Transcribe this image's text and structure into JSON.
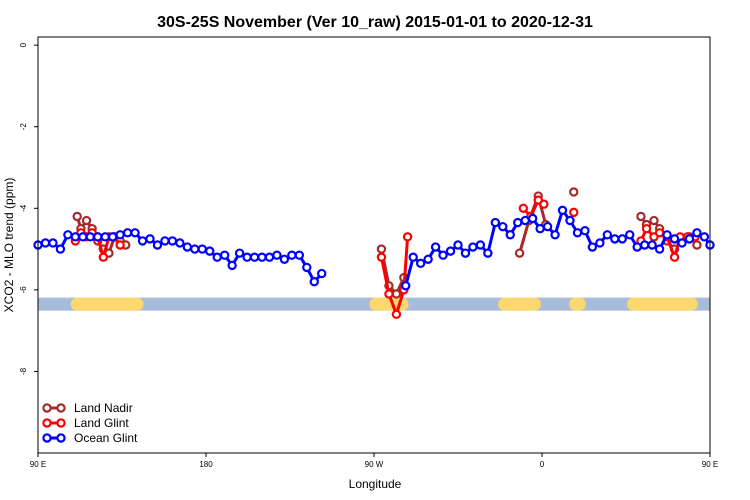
{
  "chart_data": {
    "type": "line",
    "title": "30S-25S November (Ver 10_raw)   2015-01-01 to 2020-12-31",
    "xlabel": "Longitude",
    "ylabel": "XCO2 - MLO trend (ppm)",
    "xlim": [
      -90,
      270
    ],
    "ylim": [
      -10,
      0.2
    ],
    "x_ticks": [
      {
        "value": -90,
        "label": "90 E"
      },
      {
        "value": 0,
        "label": "180"
      },
      {
        "value": 90,
        "label": "90 W"
      },
      {
        "value": 180,
        "label": "0"
      },
      {
        "value": 270,
        "label": "90 E"
      },
      {
        "value": 360,
        "label": "180"
      }
    ],
    "y_ticks": [
      {
        "value": 0,
        "label": "0"
      },
      {
        "value": -2,
        "label": "-2"
      },
      {
        "value": -4,
        "label": "-4"
      },
      {
        "value": -6,
        "label": "-6"
      },
      {
        "value": -8,
        "label": "-8"
      }
    ],
    "legend_position": "bottom-left",
    "surface_band": {
      "y": -6.35,
      "ocean_color": "#a7bcd9",
      "land_color": "#fcd86f",
      "land_ranges": [
        [
          -69,
          -37
        ],
        [
          91,
          105
        ],
        [
          160,
          176
        ],
        [
          198,
          200
        ],
        [
          229,
          260
        ]
      ]
    },
    "series": [
      {
        "name": "Land Nadir",
        "color": "#a52a2a",
        "points": [
          [
            -69,
            -4.2
          ],
          [
            -67,
            -4.5
          ],
          [
            -64,
            -4.3
          ],
          [
            -61,
            -4.5
          ],
          [
            -58,
            -4.8
          ],
          [
            -55,
            -5.0
          ],
          [
            -52,
            -5.1
          ],
          [
            -49,
            -4.7
          ],
          [
            -46,
            -4.8
          ],
          [
            -43,
            -4.9
          ],
          null,
          [
            94,
            -5.0
          ],
          [
            98,
            -5.9
          ],
          [
            102,
            -6.1
          ],
          [
            106,
            -5.7
          ],
          null,
          [
            168,
            -5.1
          ],
          [
            173,
            -4.3
          ],
          [
            178,
            -3.7
          ],
          [
            182,
            -4.4
          ],
          null,
          [
            197,
            -3.6
          ],
          null,
          [
            233,
            -4.2
          ],
          [
            236,
            -4.4
          ],
          [
            240,
            -4.3
          ],
          [
            243,
            -4.5
          ],
          [
            247,
            -4.8
          ],
          [
            251,
            -5.0
          ],
          [
            255,
            -4.8
          ],
          [
            259,
            -4.7
          ],
          [
            263,
            -4.9
          ]
        ]
      },
      {
        "name": "Land Glint",
        "color": "#ff0000",
        "points": [
          [
            -70,
            -4.8
          ],
          [
            -67,
            -4.6
          ],
          [
            -64,
            -4.7
          ],
          [
            -61,
            -4.6
          ],
          [
            -58,
            -4.7
          ],
          [
            -55,
            -5.2
          ],
          [
            -52,
            -4.7
          ],
          [
            -49,
            -4.7
          ],
          [
            -46,
            -4.9
          ],
          null,
          [
            94,
            -5.2
          ],
          [
            98,
            -6.1
          ],
          [
            102,
            -6.6
          ],
          [
            106,
            -6.0
          ],
          [
            108,
            -4.7
          ],
          null,
          [
            170,
            -4.0
          ],
          [
            174,
            -4.2
          ],
          [
            178,
            -3.8
          ],
          [
            181,
            -3.9
          ],
          null,
          [
            197,
            -4.1
          ],
          null,
          [
            233,
            -4.8
          ],
          [
            236,
            -4.5
          ],
          [
            240,
            -4.7
          ],
          [
            243,
            -4.6
          ],
          [
            247,
            -4.7
          ],
          [
            251,
            -5.2
          ],
          [
            254,
            -4.7
          ],
          [
            258,
            -4.7
          ],
          [
            262,
            -4.7
          ]
        ]
      },
      {
        "name": "Ocean Glint",
        "color": "#0000ff",
        "points": [
          [
            -90,
            -4.9
          ],
          [
            -86,
            -4.85
          ],
          [
            -82,
            -4.85
          ],
          [
            -78,
            -5.0
          ],
          [
            -74,
            -4.65
          ],
          [
            -70,
            -4.7
          ],
          [
            -66,
            -4.7
          ],
          [
            -62,
            -4.7
          ],
          [
            -58,
            -4.7
          ],
          [
            -54,
            -4.7
          ],
          [
            -50,
            -4.7
          ],
          [
            -46,
            -4.65
          ],
          [
            -42,
            -4.6
          ],
          [
            -38,
            -4.6
          ],
          [
            -34,
            -4.8
          ],
          [
            -30,
            -4.75
          ],
          [
            -26,
            -4.9
          ],
          [
            -22,
            -4.8
          ],
          [
            -18,
            -4.8
          ],
          [
            -14,
            -4.85
          ],
          [
            -10,
            -4.95
          ],
          [
            -6,
            -5.0
          ],
          [
            -2,
            -5.0
          ],
          [
            2,
            -5.05
          ],
          [
            6,
            -5.2
          ],
          [
            10,
            -5.15
          ],
          [
            14,
            -5.4
          ],
          [
            18,
            -5.1
          ],
          [
            22,
            -5.2
          ],
          [
            26,
            -5.2
          ],
          [
            30,
            -5.2
          ],
          [
            34,
            -5.2
          ],
          [
            38,
            -5.15
          ],
          [
            42,
            -5.25
          ],
          [
            46,
            -5.15
          ],
          [
            50,
            -5.15
          ],
          [
            54,
            -5.45
          ],
          [
            58,
            -5.8
          ],
          [
            62,
            -5.6
          ],
          null,
          [
            107,
            -5.9
          ],
          [
            111,
            -5.2
          ],
          [
            115,
            -5.35
          ],
          [
            119,
            -5.25
          ],
          [
            123,
            -4.95
          ],
          [
            127,
            -5.15
          ],
          [
            131,
            -5.05
          ],
          [
            135,
            -4.9
          ],
          [
            139,
            -5.1
          ],
          [
            143,
            -4.95
          ],
          [
            147,
            -4.9
          ],
          [
            151,
            -5.1
          ],
          [
            155,
            -4.35
          ],
          [
            159,
            -4.45
          ],
          [
            163,
            -4.65
          ],
          [
            167,
            -4.35
          ],
          [
            171,
            -4.3
          ],
          [
            175,
            -4.25
          ],
          [
            179,
            -4.5
          ],
          [
            183,
            -4.45
          ],
          [
            187,
            -4.65
          ],
          [
            191,
            -4.05
          ],
          [
            195,
            -4.3
          ],
          [
            199,
            -4.6
          ],
          [
            203,
            -4.55
          ],
          [
            207,
            -4.95
          ],
          [
            211,
            -4.85
          ],
          [
            215,
            -4.65
          ],
          [
            219,
            -4.75
          ],
          [
            223,
            -4.75
          ],
          [
            227,
            -4.65
          ],
          [
            231,
            -4.95
          ],
          [
            235,
            -4.9
          ],
          [
            239,
            -4.9
          ],
          [
            243,
            -5.0
          ],
          [
            247,
            -4.65
          ],
          [
            251,
            -4.75
          ],
          [
            255,
            -4.85
          ],
          [
            259,
            -4.75
          ],
          [
            263,
            -4.6
          ],
          [
            267,
            -4.7
          ],
          [
            270,
            -4.9
          ]
        ]
      }
    ]
  }
}
